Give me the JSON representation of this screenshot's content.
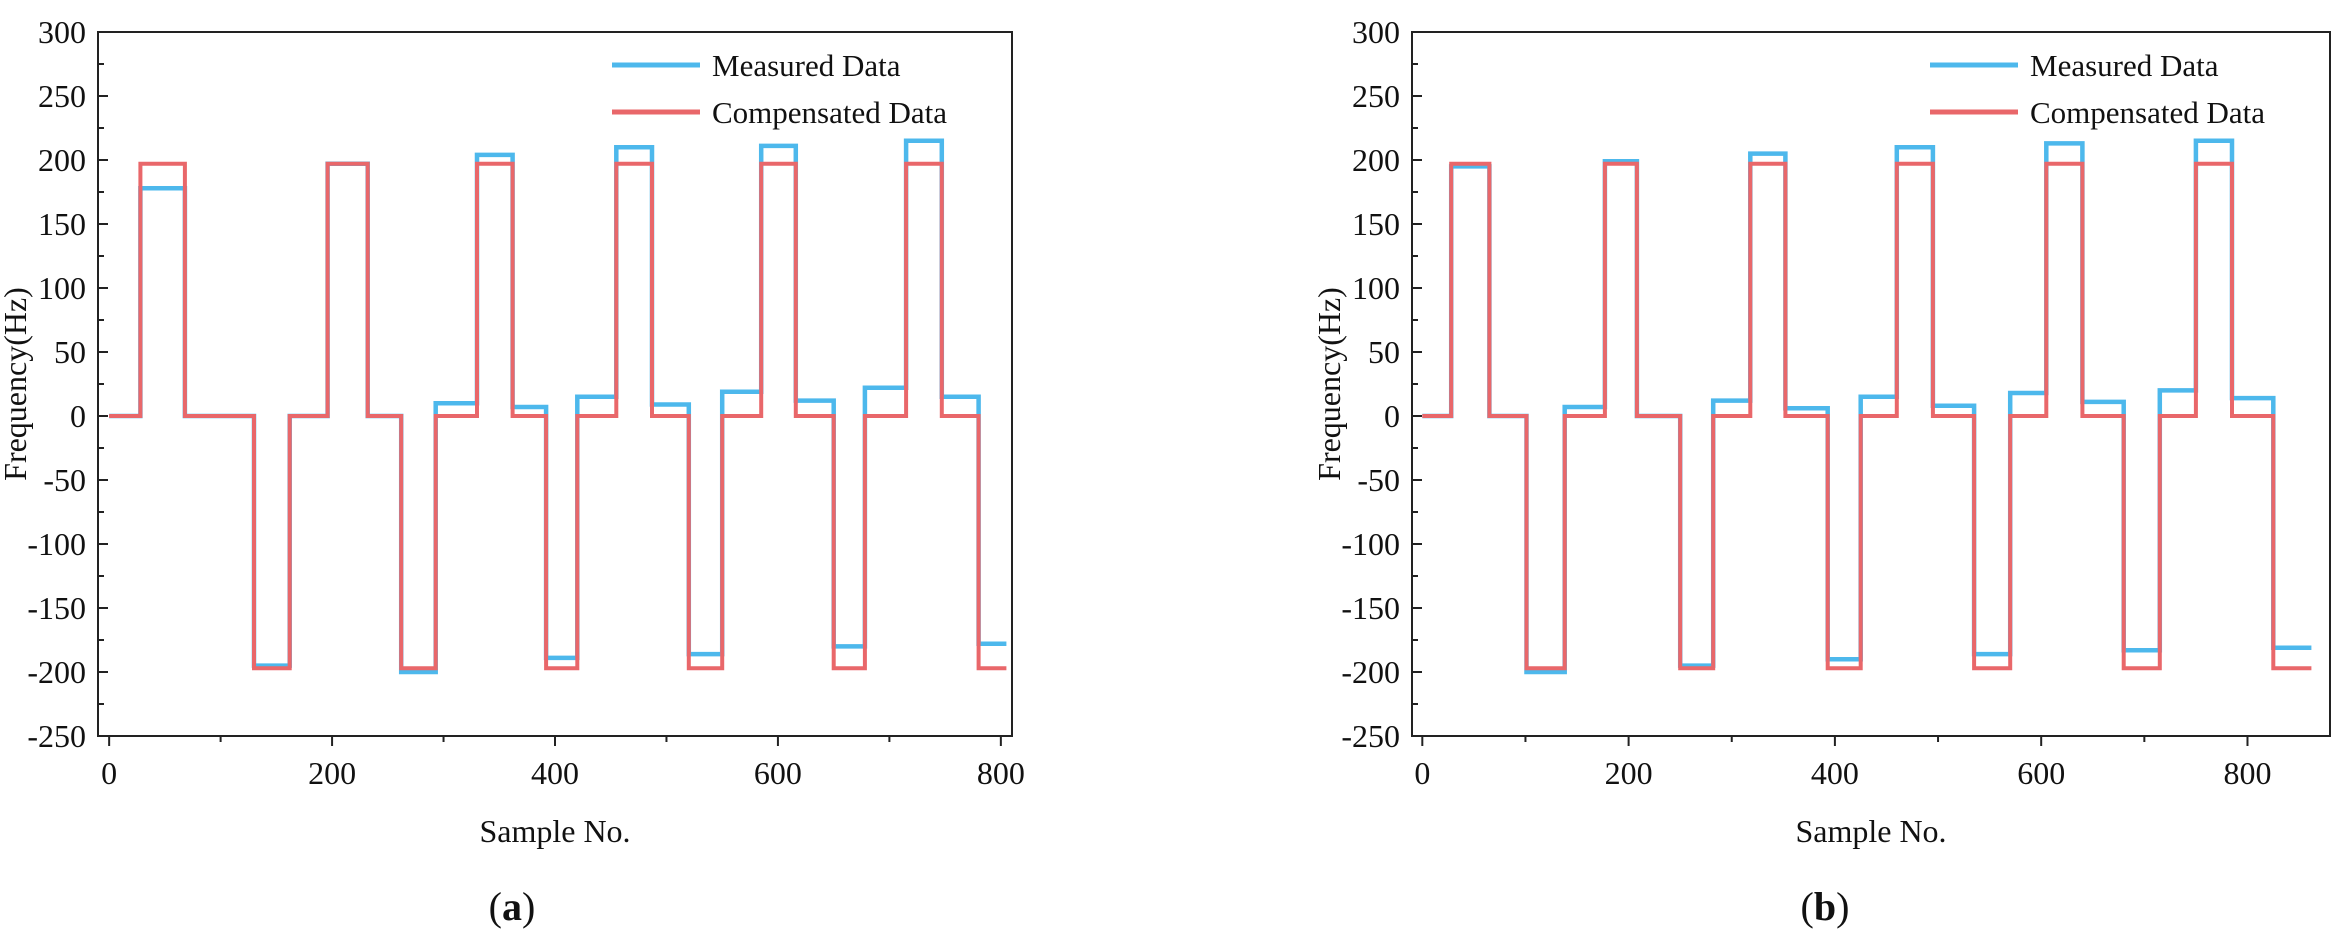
{
  "chart_data": [
    {
      "type": "line",
      "panel_label": {
        "open": "(",
        "letter": "a",
        "close": ")"
      },
      "xlabel": "Sample No.",
      "ylabel": "Frequency(Hz)",
      "xlim": [
        -10,
        810
      ],
      "ylim": [
        -250,
        300
      ],
      "xticks": [
        0,
        200,
        400,
        600,
        800
      ],
      "yticks": [
        -250,
        -200,
        -150,
        -100,
        -50,
        0,
        50,
        100,
        150,
        200,
        250,
        300
      ],
      "legend_position": "top-right",
      "series": [
        {
          "name": "Measured Data",
          "color": "#4db8ec",
          "breaks": [
            0,
            28,
            68,
            130,
            162,
            196,
            232,
            262,
            293,
            330,
            362,
            392,
            420,
            455,
            487,
            520,
            550,
            585,
            616,
            650,
            678,
            715,
            747,
            780,
            805
          ],
          "values": [
            0,
            178,
            0,
            -195,
            0,
            197,
            0,
            -200,
            10,
            204,
            7,
            -189,
            15,
            210,
            9,
            -186,
            19,
            211,
            12,
            -180,
            22,
            215,
            15,
            -178
          ]
        },
        {
          "name": "Compensated Data",
          "color": "#e9676a",
          "breaks": [
            0,
            28,
            68,
            130,
            162,
            196,
            232,
            262,
            293,
            330,
            362,
            392,
            420,
            455,
            487,
            520,
            550,
            585,
            616,
            650,
            678,
            715,
            747,
            780,
            805
          ],
          "values": [
            0,
            197,
            0,
            -197,
            0,
            197,
            0,
            -197,
            0,
            197,
            0,
            -197,
            0,
            197,
            0,
            -197,
            0,
            197,
            0,
            -197,
            0,
            197,
            0,
            -197
          ]
        }
      ]
    },
    {
      "type": "line",
      "panel_label": {
        "open": "(",
        "letter": "b",
        "close": ")"
      },
      "xlabel": "Sample No.",
      "ylabel": "Frequency(Hz)",
      "xlim": [
        -10,
        880
      ],
      "ylim": [
        -250,
        300
      ],
      "xticks": [
        0,
        200,
        400,
        600,
        800
      ],
      "yticks": [
        -250,
        -200,
        -150,
        -100,
        -50,
        0,
        50,
        100,
        150,
        200,
        250,
        300
      ],
      "legend_position": "top-right",
      "series": [
        {
          "name": "Measured Data",
          "color": "#4db8ec",
          "breaks": [
            0,
            28,
            65,
            101,
            138,
            177,
            208,
            250,
            282,
            318,
            352,
            393,
            425,
            460,
            495,
            535,
            570,
            605,
            640,
            680,
            715,
            750,
            785,
            825,
            862
          ],
          "values": [
            0,
            195,
            0,
            -200,
            7,
            199,
            0,
            -195,
            12,
            205,
            6,
            -190,
            15,
            210,
            8,
            -186,
            18,
            213,
            11,
            -183,
            20,
            215,
            14,
            -181
          ]
        },
        {
          "name": "Compensated Data",
          "color": "#e9676a",
          "breaks": [
            0,
            28,
            65,
            101,
            138,
            177,
            208,
            250,
            282,
            318,
            352,
            393,
            425,
            460,
            495,
            535,
            570,
            605,
            640,
            680,
            715,
            750,
            785,
            825,
            862
          ],
          "values": [
            0,
            197,
            0,
            -197,
            0,
            197,
            0,
            -197,
            0,
            197,
            0,
            -197,
            0,
            197,
            0,
            -197,
            0,
            197,
            0,
            -197,
            0,
            197,
            0,
            -197
          ]
        }
      ]
    }
  ]
}
